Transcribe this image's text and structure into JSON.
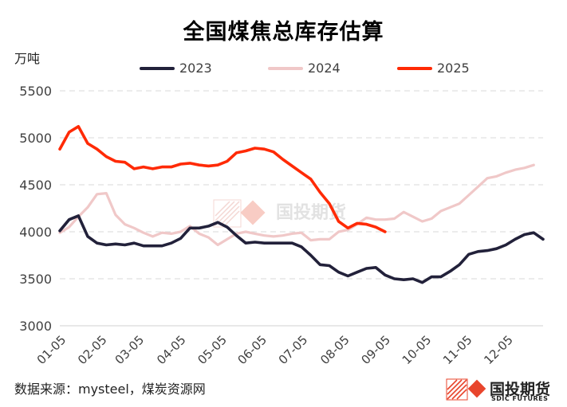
{
  "page": {
    "title": "全国煤焦总库存估算",
    "y_unit": "万吨",
    "source": "数据来源：mysteel，煤炭资源网",
    "watermark": "国投期货",
    "logo": {
      "name": "国投期货",
      "name_en": "SDIC FUTURES"
    }
  },
  "colors": {
    "s2023": "#22213a",
    "s2024": "#f0c8c8",
    "s2025": "#ff2a05",
    "grid": "#d9d9d9",
    "axis": "#d9d9d9",
    "logo_red": "#e8452c"
  },
  "chart_data": {
    "type": "line",
    "title": "全国煤焦总库存估算",
    "ylabel": "万吨",
    "xlabel": "",
    "ylim": [
      3000,
      5500
    ],
    "ytick_values": [
      3000,
      3500,
      4000,
      4500,
      5000,
      5500
    ],
    "ytick_labels": [
      "3000",
      "3500",
      "4000",
      "4500",
      "5000",
      "5500"
    ],
    "x_week_range": [
      1,
      53
    ],
    "xtick_labels": [
      "01-05",
      "02-05",
      "03-05",
      "04-05",
      "05-05",
      "06-05",
      "07-05",
      "08-05",
      "09-05",
      "10-05",
      "11-05",
      "12-05"
    ],
    "xtick_weeks": [
      1,
      5.4,
      9.4,
      13.9,
      18.3,
      22.6,
      27,
      31.5,
      35.9,
      40.3,
      44.7,
      49.1
    ],
    "grid": true,
    "legend_position": "top",
    "series": [
      {
        "name": "2023",
        "values": [
          4010,
          4130,
          4170,
          3950,
          3880,
          3860,
          3870,
          3860,
          3880,
          3850,
          3850,
          3850,
          3880,
          3930,
          4040,
          4040,
          4060,
          4100,
          4050,
          3960,
          3880,
          3890,
          3880,
          3880,
          3880,
          3880,
          3840,
          3750,
          3650,
          3640,
          3570,
          3530,
          3570,
          3610,
          3620,
          3540,
          3500,
          3490,
          3500,
          3460,
          3520,
          3520,
          3580,
          3650,
          3760,
          3790,
          3800,
          3820,
          3860,
          3920,
          3970,
          3990,
          3920
        ]
      },
      {
        "name": "2024",
        "values": [
          3990,
          4050,
          4160,
          4260,
          4400,
          4410,
          4180,
          4080,
          4040,
          3990,
          3950,
          3990,
          3980,
          4000,
          4060,
          3980,
          3940,
          3860,
          3920,
          3980,
          4000,
          3980,
          3960,
          3950,
          3960,
          3980,
          3990,
          3910,
          3920,
          3920,
          4000,
          4020,
          4080,
          4150,
          4130,
          4130,
          4140,
          4210,
          4160,
          4110,
          4140,
          4220,
          4260,
          4300,
          4390,
          4480,
          4570,
          4590,
          4630,
          4660,
          4680,
          4710
        ]
      },
      {
        "name": "2025",
        "values": [
          4880,
          5060,
          5120,
          4940,
          4880,
          4800,
          4750,
          4740,
          4670,
          4690,
          4670,
          4690,
          4690,
          4720,
          4730,
          4710,
          4700,
          4710,
          4750,
          4840,
          4860,
          4890,
          4880,
          4850,
          4770,
          4700,
          4630,
          4560,
          4420,
          4300,
          4110,
          4040,
          4090,
          4080,
          4050,
          4000
        ]
      }
    ]
  }
}
